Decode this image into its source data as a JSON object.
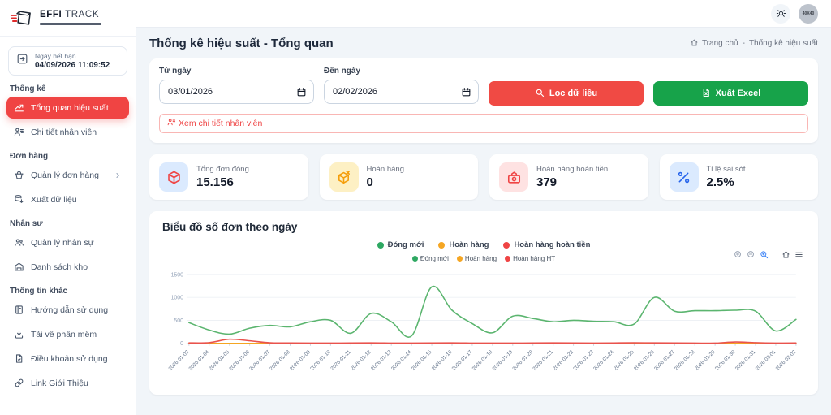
{
  "topbar": {
    "avatar_text": "40X40"
  },
  "sidebar": {
    "logo": {
      "brand_bold": "EFFI",
      "brand_light": "TRACK"
    },
    "expiry": {
      "label": "Ngày hết hạn",
      "value": "04/09/2026 11:09:52"
    },
    "sections": [
      {
        "label": "Thống kê",
        "items": [
          {
            "label": "Tổng quan hiệu suất",
            "icon": "chart-line-icon",
            "active": true
          },
          {
            "label": "Chi tiết nhân viên",
            "icon": "employee-detail-icon"
          }
        ]
      },
      {
        "label": "Đơn hàng",
        "items": [
          {
            "label": "Quản lý đơn hàng",
            "icon": "orders-icon",
            "chevron": true
          },
          {
            "label": "Xuất dữ liệu",
            "icon": "export-data-icon"
          }
        ]
      },
      {
        "label": "Nhân sự",
        "items": [
          {
            "label": "Quản lý nhân sự",
            "icon": "team-icon"
          },
          {
            "label": "Danh sách kho",
            "icon": "warehouse-icon"
          }
        ]
      },
      {
        "label": "Thông tin khác",
        "items": [
          {
            "label": "Hướng dẫn sử dụng",
            "icon": "guide-icon"
          },
          {
            "label": "Tải về phần mềm",
            "icon": "download-icon"
          },
          {
            "label": "Điều khoản sử dụng",
            "icon": "terms-icon"
          },
          {
            "label": "Link Giới Thiệu",
            "icon": "link-icon"
          }
        ]
      }
    ]
  },
  "header": {
    "title": "Thống kê hiệu suất - Tổng quan",
    "breadcrumb": {
      "home": "Trang chủ",
      "separator": "-",
      "current": "Thống kê hiệu suất"
    }
  },
  "filters": {
    "from_label": "Từ ngày",
    "from_value": "03/01/2026",
    "to_label": "Đến ngày",
    "to_value": "02/02/2026",
    "filter_button": "Lọc dữ liệu",
    "export_button": "Xuất Excel",
    "detail_button": "Xem chi tiết nhân viên"
  },
  "stats": [
    {
      "label": "Tổng đơn đóng",
      "value": "15.156",
      "icon": "package-icon",
      "icon_color": "#ef4444",
      "tile_bg": "#dbeafe"
    },
    {
      "label": "Hoàn hàng",
      "value": "0",
      "icon": "package-x-icon",
      "icon_color": "#f59e0b",
      "tile_bg": "#fdf0c4"
    },
    {
      "label": "Hoàn hàng hoàn tiền",
      "value": "379",
      "icon": "cash-return-icon",
      "icon_color": "#ef4444",
      "tile_bg": "#fee2e2"
    },
    {
      "label": "Tỉ lệ sai sót",
      "value": "2.5%",
      "icon": "percent-icon",
      "icon_color": "#2563eb",
      "tile_bg": "#dbeafe"
    }
  ],
  "chart_data": {
    "type": "line",
    "title": "Biểu đồ số đơn theo ngày",
    "legend_top": [
      {
        "label": "Đóng mới",
        "color": "#2ea862"
      },
      {
        "label": "Hoàn hàng",
        "color": "#f5a623"
      },
      {
        "label": "Hoàn hàng hoàn tiền",
        "color": "#ef4444"
      }
    ],
    "legend_inner": [
      {
        "label": "Đóng mới",
        "color": "#2ea862"
      },
      {
        "label": "Hoàn hàng",
        "color": "#f5a623"
      },
      {
        "label": "Hoàn hàng HT",
        "color": "#ef4444"
      }
    ],
    "toolbar_icons": [
      "zoom-in-icon",
      "zoom-out-icon",
      "box-zoom-icon",
      "home-icon",
      "menu-icon"
    ],
    "x": [
      "2026-01-03",
      "2026-01-04",
      "2026-01-05",
      "2026-01-06",
      "2026-01-07",
      "2026-01-08",
      "2026-01-09",
      "2026-01-10",
      "2026-01-11",
      "2026-01-12",
      "2026-01-13",
      "2026-01-14",
      "2026-01-15",
      "2026-01-16",
      "2026-01-17",
      "2026-01-18",
      "2026-01-19",
      "2026-01-20",
      "2026-01-21",
      "2026-01-22",
      "2026-01-23",
      "2026-01-24",
      "2026-01-25",
      "2026-01-26",
      "2026-01-27",
      "2026-01-28",
      "2026-01-29",
      "2026-01-30",
      "2026-01-31",
      "2026-02-01",
      "2026-02-02"
    ],
    "series": [
      {
        "name": "Đóng mới",
        "color": "#5bb56f",
        "values": [
          450,
          290,
          200,
          330,
          390,
          360,
          470,
          500,
          220,
          650,
          470,
          160,
          1230,
          720,
          430,
          230,
          590,
          540,
          470,
          500,
          480,
          470,
          420,
          1000,
          700,
          710,
          710,
          720,
          700,
          270,
          520
        ]
      },
      {
        "name": "Hoàn hàng",
        "color": "#f5a623",
        "values": [
          0,
          0,
          0,
          0,
          0,
          0,
          0,
          0,
          0,
          0,
          0,
          0,
          0,
          0,
          0,
          0,
          0,
          0,
          0,
          0,
          0,
          0,
          0,
          0,
          0,
          0,
          0,
          0,
          0,
          0,
          0
        ]
      },
      {
        "name": "Hoàn hàng HT",
        "color": "#e9534d",
        "values": [
          10,
          15,
          90,
          55,
          12,
          8,
          5,
          6,
          8,
          10,
          6,
          5,
          8,
          10,
          6,
          5,
          6,
          8,
          10,
          8,
          6,
          8,
          12,
          10,
          8,
          6,
          5,
          30,
          15,
          6,
          8
        ]
      }
    ],
    "ylim": [
      0,
      1500
    ],
    "yticks": [
      0,
      500,
      1000,
      1500
    ],
    "grid": true,
    "legend_position": "top"
  }
}
